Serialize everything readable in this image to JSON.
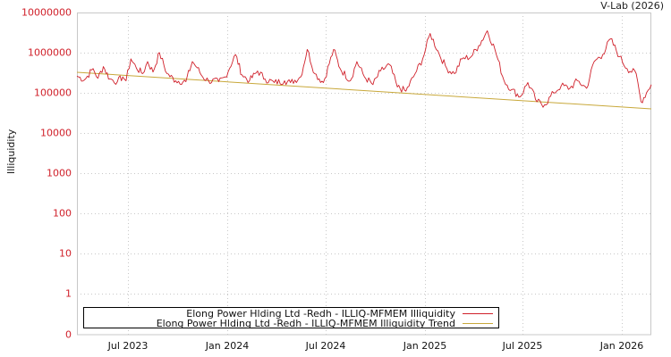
{
  "header": {
    "credit": "V-Lab (2026)"
  },
  "legend": {
    "items": [
      {
        "label": "Elong Power Hlding Ltd -Redh - ILLIQ-MFMEM Illiquidity",
        "color": "#d0202a"
      },
      {
        "label": "Elong Power Hlding Ltd -Redh - ILLIQ-MFMEM Illiquidity Trend",
        "color": "#c8a83a"
      }
    ]
  },
  "colors": {
    "series": "#d0202a",
    "trend": "#c8a83a",
    "grid": "#c8c8c8",
    "axis_tick_labels": "#d0202a"
  },
  "chart_data": {
    "type": "line",
    "title": "",
    "xlabel": "",
    "ylabel": "Illiquidity",
    "yscale": "log",
    "ylim": [
      0,
      10000000
    ],
    "y_ticks": [
      "10000000",
      "1000000",
      "100000",
      "10000",
      "1000",
      "100",
      "10",
      "1",
      "0"
    ],
    "x_ticks": [
      "Jul 2023",
      "Jan 2024",
      "Jul 2024",
      "Jan 2025",
      "Jul 2025",
      "Jan 2026"
    ],
    "xlim": [
      "2023-04",
      "2026-03"
    ],
    "grid": true,
    "legend_position": "bottom-left inside",
    "series": [
      {
        "name": "Elong Power Hlding Ltd -Redh - ILLIQ-MFMEM Illiquidity",
        "color": "#d0202a",
        "points": [
          [
            "2023-04",
            260000
          ],
          [
            "2023-04-15",
            210000
          ],
          [
            "2023-05",
            400000
          ],
          [
            "2023-05-10",
            230000
          ],
          [
            "2023-05-20",
            450000
          ],
          [
            "2023-06",
            220000
          ],
          [
            "2023-06-15",
            190000
          ],
          [
            "2023-06-25",
            250000
          ],
          [
            "2023-07",
            200000
          ],
          [
            "2023-07-10",
            700000
          ],
          [
            "2023-07-20",
            420000
          ],
          [
            "2023-08",
            300000
          ],
          [
            "2023-08-10",
            600000
          ],
          [
            "2023-08-20",
            330000
          ],
          [
            "2023-09",
            1000000
          ],
          [
            "2023-09-15",
            300000
          ],
          [
            "2023-10",
            200000
          ],
          [
            "2023-10-20",
            190000
          ],
          [
            "2023-11",
            600000
          ],
          [
            "2023-11-10",
            420000
          ],
          [
            "2023-11-20",
            250000
          ],
          [
            "2023-12",
            200000
          ],
          [
            "2023-12-20",
            190000
          ],
          [
            "2024-01",
            250000
          ],
          [
            "2024-01-20",
            900000
          ],
          [
            "2024-02",
            280000
          ],
          [
            "2024-02-15",
            200000
          ],
          [
            "2024-03",
            350000
          ],
          [
            "2024-03-15",
            220000
          ],
          [
            "2024-04",
            180000
          ],
          [
            "2024-04-20",
            200000
          ],
          [
            "2024-05",
            180000
          ],
          [
            "2024-05-20",
            250000
          ],
          [
            "2024-06",
            1200000
          ],
          [
            "2024-06-15",
            300000
          ],
          [
            "2024-07",
            180000
          ],
          [
            "2024-07-20",
            1200000
          ],
          [
            "2024-08",
            400000
          ],
          [
            "2024-08-20",
            200000
          ],
          [
            "2024-09",
            600000
          ],
          [
            "2024-09-15",
            250000
          ],
          [
            "2024-10",
            160000
          ],
          [
            "2024-10-15",
            350000
          ],
          [
            "2024-11",
            500000
          ],
          [
            "2024-11-15",
            140000
          ],
          [
            "2024-12",
            110000
          ],
          [
            "2024-12-15",
            250000
          ],
          [
            "2025-01",
            700000
          ],
          [
            "2025-01-15",
            3000000
          ],
          [
            "2025-02",
            900000
          ],
          [
            "2025-02-15",
            400000
          ],
          [
            "2025-03",
            300000
          ],
          [
            "2025-03-15",
            700000
          ],
          [
            "2025-04",
            800000
          ],
          [
            "2025-04-15",
            1500000
          ],
          [
            "2025-05",
            3500000
          ],
          [
            "2025-05-15",
            1200000
          ],
          [
            "2025-06",
            200000
          ],
          [
            "2025-06-15",
            120000
          ],
          [
            "2025-07",
            80000
          ],
          [
            "2025-07-15",
            180000
          ],
          [
            "2025-08",
            60000
          ],
          [
            "2025-08-15",
            50000
          ],
          [
            "2025-09",
            100000
          ],
          [
            "2025-09-15",
            150000
          ],
          [
            "2025-10",
            130000
          ],
          [
            "2025-10-15",
            200000
          ],
          [
            "2025-11",
            130000
          ],
          [
            "2025-11-15",
            600000
          ],
          [
            "2025-12",
            900000
          ],
          [
            "2025-12-15",
            2200000
          ],
          [
            "2026-01",
            800000
          ],
          [
            "2026-01-15",
            400000
          ],
          [
            "2026-02",
            300000
          ],
          [
            "2026-02-10",
            60000
          ],
          [
            "2026-02-20",
            100000
          ],
          [
            "2026-03",
            160000
          ]
        ]
      },
      {
        "name": "Elong Power Hlding Ltd -Redh - ILLIQ-MFMEM Illiquidity Trend",
        "color": "#c8a83a",
        "points": [
          [
            "2023-04",
            320000
          ],
          [
            "2026-03",
            40000
          ]
        ]
      }
    ]
  }
}
